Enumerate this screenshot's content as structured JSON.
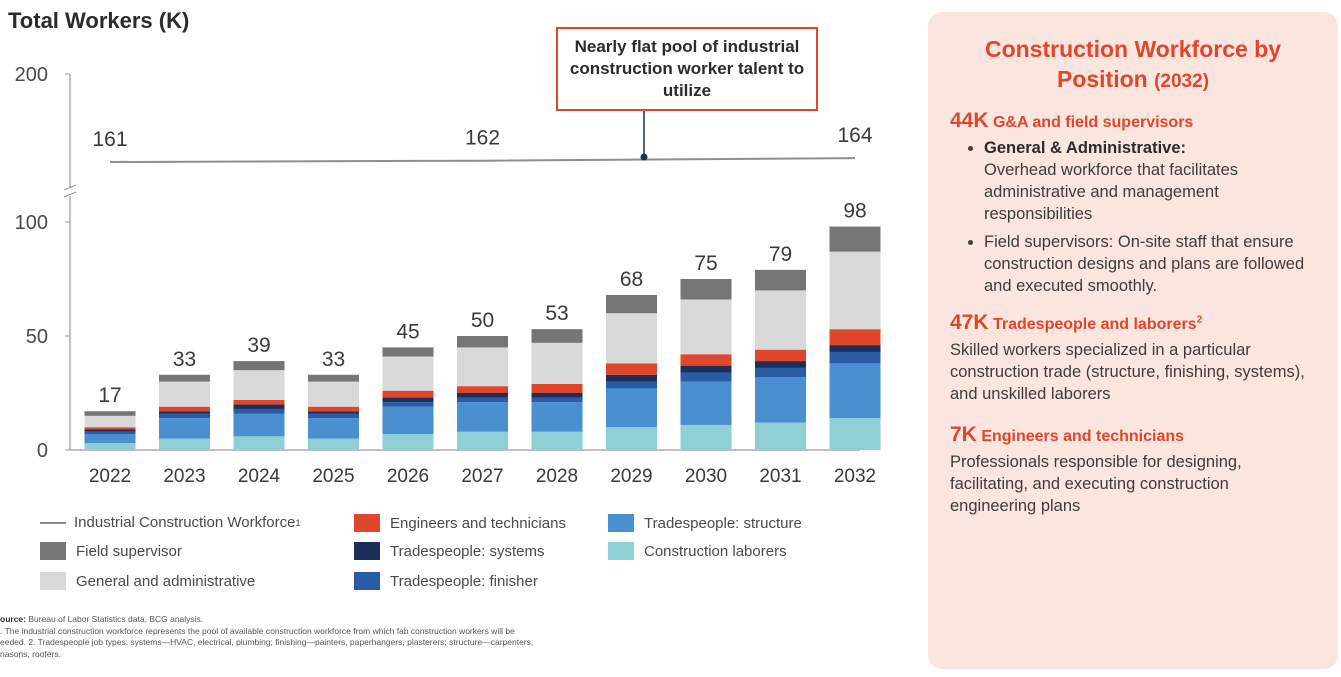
{
  "chart_data": {
    "type": "bar",
    "stacked": true,
    "title": "Total Workers (K)",
    "categories": [
      "2022",
      "2023",
      "2024",
      "2025",
      "2026",
      "2027",
      "2028",
      "2029",
      "2030",
      "2031",
      "2032"
    ],
    "totals": [
      17,
      33,
      39,
      33,
      45,
      50,
      53,
      68,
      75,
      79,
      98
    ],
    "yticks_lower": [
      0,
      50,
      100
    ],
    "ytick_upper": 200,
    "axis_break": true,
    "ylim_lower": [
      0,
      100
    ],
    "series": [
      {
        "name": "Construction laborers",
        "color": "#8ecfd3",
        "values": [
          3,
          5,
          6,
          5,
          7,
          8,
          8,
          10,
          11,
          12,
          14
        ]
      },
      {
        "name": "Tradespeople: structure",
        "color": "#4a8fcf",
        "values": [
          4,
          9,
          10,
          9,
          12,
          13,
          13,
          17,
          19,
          20,
          24
        ]
      },
      {
        "name": "Tradespeople: finisher",
        "color": "#2a5ca6",
        "values": [
          1,
          2,
          2,
          2,
          2,
          2,
          2,
          3,
          4,
          4,
          5
        ]
      },
      {
        "name": "Tradespeople: systems",
        "color": "#1b2f5a",
        "values": [
          1,
          1,
          2,
          1,
          2,
          2,
          2,
          3,
          3,
          3,
          3
        ]
      },
      {
        "name": "Engineers and technicians",
        "color": "#e0462b",
        "values": [
          1,
          2,
          2,
          2,
          3,
          3,
          4,
          5,
          5,
          5,
          7
        ]
      },
      {
        "name": "General and administrative",
        "color": "#d9d9d9",
        "values": [
          5,
          11,
          13,
          11,
          15,
          17,
          18,
          22,
          24,
          26,
          34
        ]
      },
      {
        "name": "Field supervisor",
        "color": "#757575",
        "values": [
          2,
          3,
          4,
          3,
          4,
          5,
          6,
          8,
          9,
          9,
          11
        ]
      }
    ],
    "line_series": {
      "name": "Industrial Construction Workforce",
      "name_superscript": "1",
      "color": "#8a8f95",
      "labels": [
        {
          "year": "2022",
          "value": 161
        },
        {
          "year": "2027",
          "value": 162
        },
        {
          "year": "2032",
          "value": 164
        }
      ]
    },
    "callout": "Nearly flat pool of industrial construction worker talent to utilize",
    "legend_placement": "bottom"
  },
  "legend": {
    "line_label": "Industrial Construction Workforce",
    "line_sup": "1",
    "field_supervisor": "Field supervisor",
    "general_admin": "General and administrative",
    "engineers": "Engineers and technicians",
    "systems": "Tradespeople: systems",
    "finisher": "Tradespeople: finisher",
    "structure": "Tradespeople: structure",
    "laborers": "Construction laborers"
  },
  "footnotes": {
    "source_label": "ource:",
    "source_text": " Bureau of Labor Statistics data, BCG analysis.",
    "note1": ". The industrial construction workforce represents the pool of available construction workforce from which fab construction workers will be",
    "note2": "eeded.  2. Tradespeople job types: systems—HVAC, electrical, plumbing; finishing—painters, paperhangers, plasterers; structure—carpenters,",
    "note3": "nasons, roofers."
  },
  "panel": {
    "title_line1": "Construction Workforce by",
    "title_line2": "Position",
    "title_year": "(2032)",
    "ga_value": "44K",
    "ga_heading": "G&A and field supervisors",
    "ga_b1_label": "General & Administrative:",
    "ga_b1_text": "Overhead workforce that facilitates administrative and management responsibilities",
    "ga_b2_text": "Field supervisors: On-site staff that ensure construction designs and plans are followed and executed smoothly.",
    "trades_value": "47K",
    "trades_heading": "Tradespeople and laborers",
    "trades_sup": "2",
    "trades_text": "Skilled workers specialized in a particular construction trade (structure, finishing, systems), and unskilled laborers",
    "eng_value": "7K",
    "eng_heading": "Engineers and technicians",
    "eng_text": "Professionals responsible for designing, facilitating, and executing construction engineering plans"
  },
  "colors": {
    "accent": "#e0462b",
    "panel_bg": "#fbe5df"
  }
}
